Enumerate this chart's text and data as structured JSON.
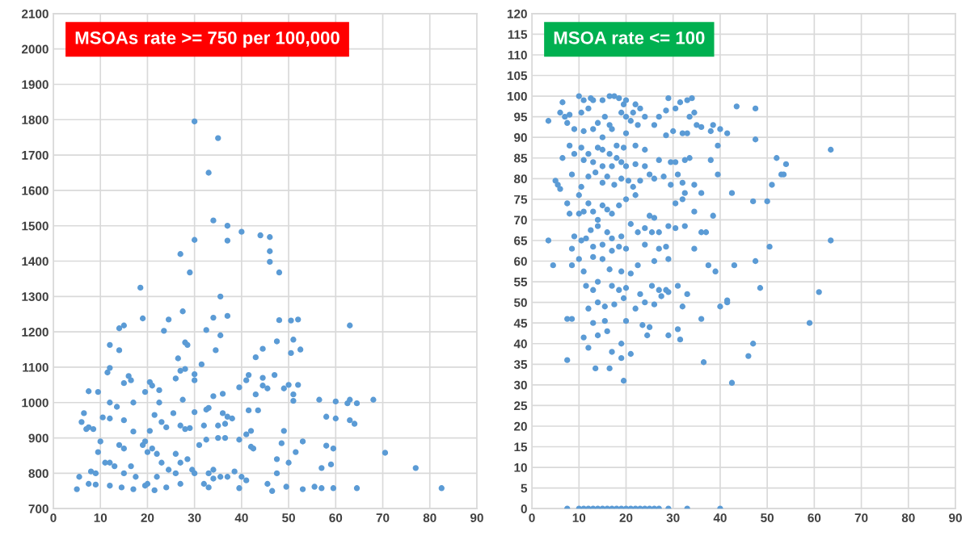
{
  "chart_data": [
    {
      "type": "scatter",
      "title": "MSOAs rate >= 750 per 100,000",
      "xlim": [
        0,
        90
      ],
      "xticks": [
        0,
        10,
        20,
        30,
        40,
        50,
        60,
        70,
        80,
        90
      ],
      "ylim": [
        700,
        2100
      ],
      "yticks": [
        700,
        800,
        900,
        1000,
        1100,
        1200,
        1300,
        1400,
        1500,
        1600,
        1700,
        1800,
        1900,
        2000,
        2100
      ],
      "grid": true,
      "marker": "circle",
      "series": [
        {
          "color": "#5b9bd5",
          "x": [
            30,
            35,
            33,
            34,
            37,
            40,
            37,
            30,
            44,
            46,
            46,
            46,
            27,
            29,
            48,
            18.5,
            35.5,
            27.5,
            19,
            24.5,
            34,
            37,
            48,
            50.5,
            52,
            63,
            15,
            14,
            23.5,
            32.5,
            35.5,
            28,
            28.5,
            12,
            51,
            47.5,
            34.5,
            14,
            44.5,
            52.5,
            50.5,
            43,
            26.5,
            31.5,
            12,
            11.5,
            27,
            28,
            16,
            16.5,
            15,
            20.5,
            26,
            30,
            30,
            41.5,
            41,
            47,
            44.5,
            45.5,
            39.5,
            50,
            52,
            49,
            51,
            43,
            36,
            34,
            7.5,
            9.5,
            19.5,
            22.5,
            27.5,
            12,
            17,
            21,
            56.5,
            60,
            63,
            64.5,
            68,
            62.5,
            6.5,
            10.5,
            12,
            13.5,
            21.5,
            22.5,
            25.5,
            30,
            33,
            32.5,
            36,
            37,
            41.5,
            43.5,
            51,
            58,
            60,
            63,
            64,
            6,
            7.5,
            8.5,
            7,
            15,
            17,
            23,
            24,
            27,
            28,
            29,
            32,
            35,
            36.5,
            38,
            20.5,
            49,
            42,
            41,
            39.5,
            14,
            15,
            19,
            10,
            19.5,
            21,
            22,
            26,
            28.5,
            31,
            32.5,
            35,
            36.5,
            42,
            42.5,
            48.5,
            53,
            58,
            59.5,
            70.5,
            9.5,
            12,
            13,
            16.5,
            20,
            23,
            27,
            29.5,
            33,
            34,
            35.5,
            38.5,
            40,
            47.5,
            50,
            51.5,
            57,
            59,
            77,
            5.5,
            8,
            9,
            11,
            15,
            17.5,
            20,
            22,
            24.5,
            26,
            30,
            32,
            34,
            37,
            41,
            45.5,
            47.5,
            49.5,
            5,
            7.5,
            9,
            12,
            14.5,
            17,
            19.5,
            21.5,
            24,
            27,
            33,
            39.5,
            46.5,
            53,
            55.5,
            57,
            59.5,
            64.5,
            82.5,
            44.5
          ],
          "values": [
            1795,
            1748,
            1650,
            1515,
            1500,
            1483,
            1458,
            1460,
            1473,
            1468,
            1428,
            1398,
            1420,
            1368,
            1368,
            1325,
            1300,
            1258,
            1238,
            1235,
            1240,
            1245,
            1233,
            1232,
            1235,
            1218,
            1218,
            1210,
            1203,
            1205,
            1190,
            1170,
            1163,
            1163,
            1178,
            1173,
            1148,
            1148,
            1152,
            1150,
            1140,
            1128,
            1125,
            1108,
            1098,
            1085,
            1090,
            1095,
            1075,
            1063,
            1055,
            1058,
            1068,
            1080,
            1063,
            1078,
            1063,
            1078,
            1048,
            1040,
            1043,
            1050,
            1050,
            1040,
            1023,
            1023,
            1025,
            1018,
            1032,
            1030,
            1030,
            1035,
            1008,
            1000,
            1000,
            1048,
            1008,
            1003,
            1008,
            998,
            1008,
            998,
            970,
            958,
            955,
            988,
            965,
            1000,
            970,
            973,
            985,
            980,
            970,
            960,
            978,
            978,
            1005,
            960,
            955,
            950,
            940,
            945,
            930,
            925,
            925,
            950,
            918,
            945,
            930,
            935,
            925,
            928,
            935,
            935,
            940,
            955,
            920,
            920,
            920,
            910,
            895,
            880,
            870,
            880,
            890,
            890,
            870,
            855,
            855,
            840,
            880,
            895,
            900,
            900,
            875,
            870,
            885,
            890,
            878,
            870,
            858,
            860,
            830,
            820,
            820,
            860,
            830,
            830,
            810,
            800,
            810,
            790,
            805,
            790,
            840,
            830,
            860,
            815,
            825,
            815,
            790,
            805,
            800,
            830,
            800,
            790,
            770,
            790,
            810,
            800,
            800,
            770,
            785,
            790,
            780,
            770,
            800,
            762,
            755,
            770,
            768,
            765,
            760,
            755,
            765,
            752,
            760,
            770,
            760,
            758,
            750,
            755,
            762,
            758,
            758,
            758,
            758,
            1070
          ]
        }
      ]
    },
    {
      "type": "scatter",
      "title": "MSOA rate <= 100",
      "xlim": [
        0,
        90
      ],
      "xticks": [
        0,
        10,
        20,
        30,
        40,
        50,
        60,
        70,
        80,
        90
      ],
      "ylim": [
        0,
        120
      ],
      "yticks": [
        0,
        5,
        10,
        15,
        20,
        25,
        30,
        35,
        40,
        45,
        50,
        55,
        60,
        65,
        70,
        75,
        80,
        85,
        90,
        95,
        100,
        105,
        110,
        115,
        120
      ],
      "grid": true,
      "marker": "circle",
      "series": [
        {
          "color": "#5b9bd5",
          "x": [
            7.5,
            10,
            11,
            12,
            13,
            14,
            15,
            16,
            17,
            18,
            19,
            20,
            21,
            22,
            23,
            24,
            25,
            26,
            27,
            29,
            33,
            40,
            3.5,
            6.5,
            6,
            7,
            8,
            7.5,
            10,
            11,
            12.5,
            13,
            15,
            16.5,
            17.5,
            18.5,
            19.5,
            20,
            22,
            23,
            24,
            27,
            28.5,
            29,
            30.5,
            31.5,
            33,
            34,
            33.5,
            34.5,
            35,
            38.5,
            40,
            41.5,
            43.5,
            47.5,
            10.5,
            12,
            14,
            15.5,
            16.5,
            17,
            19,
            20,
            21,
            21.5,
            22.5,
            9,
            11,
            13,
            15,
            18,
            20,
            22,
            26,
            28.5,
            30,
            32,
            33,
            36,
            38,
            47.5,
            8,
            10.5,
            12,
            14,
            15,
            16.5,
            18,
            19.5,
            24,
            6.5,
            9,
            11,
            13,
            15,
            17,
            19,
            20,
            22,
            24,
            27,
            29.5,
            30.5,
            32.5,
            33.5,
            38,
            39.5,
            52,
            54,
            63.5,
            5,
            5.5,
            6,
            8.5,
            10.5,
            12,
            13.5,
            15,
            16,
            17.5,
            19,
            20.5,
            21.5,
            23,
            25,
            26,
            28,
            29.5,
            31,
            32,
            34.5,
            36,
            39.5,
            42.5,
            47,
            50,
            51,
            53,
            53.5,
            7.5,
            8,
            10,
            11,
            12,
            13,
            14,
            15,
            16,
            17,
            18.5,
            20,
            22,
            25,
            26,
            30.5,
            32,
            32.5,
            34.5,
            38.5,
            10,
            11.5,
            12.5,
            14,
            16,
            17,
            19,
            21,
            22.5,
            24,
            25.5,
            27,
            29,
            30.5,
            32.5,
            36,
            37,
            3.5,
            9,
            10.5,
            8.5,
            10,
            13,
            15,
            17,
            18.5,
            20,
            24,
            27,
            28.5,
            34.5,
            50.5,
            63.5,
            4.5,
            8.5,
            11,
            13,
            15,
            16.5,
            19,
            21,
            22.5,
            26,
            29,
            37.5,
            39,
            43,
            47.5,
            11.5,
            13,
            14,
            17,
            18.5,
            20,
            23,
            25.5,
            27,
            28.5,
            31,
            33,
            48.5,
            61,
            12,
            14,
            15.5,
            17.5,
            19.5,
            22,
            24,
            26,
            27.5,
            29,
            32,
            40,
            41.5,
            7.5,
            8.5,
            13,
            15.5,
            20,
            23.5,
            25,
            31,
            36,
            59,
            11,
            14,
            16,
            19,
            24.5,
            29,
            31.5,
            12,
            17,
            19,
            21,
            7.5,
            13.5,
            16.5,
            36.5,
            47,
            46,
            19.5,
            42.5,
            41.5
          ],
          "values": [
            0,
            0,
            0,
            0,
            0,
            0,
            0,
            0,
            0,
            0,
            0,
            0,
            0,
            0,
            0,
            0,
            0,
            0,
            0,
            0,
            0,
            0,
            94,
            98.5,
            96,
            95,
            95.5,
            93.5,
            100,
            99,
            99.5,
            99,
            99,
            100,
            100,
            99.5,
            98,
            99,
            98,
            97,
            95,
            95,
            96.5,
            99.5,
            97,
            98.5,
            99,
            99.5,
            95,
            96,
            93,
            93,
            92,
            91,
            97.5,
            97,
            96,
            97,
            93.5,
            95,
            93,
            92,
            96,
            95,
            94,
            96,
            93,
            92,
            91.5,
            92,
            90,
            88,
            91,
            88,
            93,
            90.5,
            91.5,
            91,
            91,
            92.5,
            91.5,
            89.5,
            88,
            87.5,
            86,
            87.5,
            87,
            86,
            85,
            87.5,
            87,
            85,
            86,
            84.5,
            84,
            83,
            83,
            84,
            83,
            83.5,
            83,
            84.5,
            84,
            84,
            84.5,
            85,
            84.5,
            88,
            85,
            83.5,
            87,
            79.5,
            78.5,
            77.5,
            81,
            78,
            80.5,
            81.5,
            79,
            80.5,
            78.5,
            80,
            79.5,
            78,
            79.5,
            81,
            80,
            80.5,
            78.5,
            81,
            79,
            78.5,
            76.5,
            81,
            76.5,
            74.5,
            74.5,
            78.5,
            81,
            81,
            74,
            71.5,
            76,
            72,
            74,
            72,
            70,
            73.5,
            72.5,
            71.5,
            73.5,
            75,
            76,
            71,
            70.5,
            74,
            75,
            76.5,
            72,
            71,
            71.5,
            65.5,
            67.5,
            68.5,
            67,
            65.5,
            66,
            69,
            67,
            68,
            67,
            67,
            68.5,
            68,
            68.5,
            67,
            67,
            65,
            66,
            65,
            63,
            60.5,
            63.5,
            64,
            62.5,
            63.5,
            63,
            64,
            63,
            63.5,
            63,
            63.5,
            65,
            59,
            59,
            57.5,
            61,
            60.5,
            58,
            57.5,
            57,
            59,
            60,
            60.5,
            59,
            57.5,
            59,
            60,
            54,
            53,
            55,
            54,
            53,
            53.5,
            52,
            54,
            53,
            53,
            54,
            52,
            53.5,
            52.5,
            48.5,
            50,
            49,
            49.5,
            51,
            48.5,
            50,
            49.5,
            51.5,
            52.5,
            49,
            49,
            50,
            46,
            46,
            45,
            45.5,
            45.5,
            44.5,
            44,
            43.5,
            46,
            45,
            41.5,
            42,
            43,
            40,
            42,
            42,
            41,
            39,
            38,
            36.5,
            37.5,
            36,
            34,
            34,
            35.5,
            40,
            37,
            31,
            30.5,
            50.5
          ]
        }
      ]
    }
  ]
}
